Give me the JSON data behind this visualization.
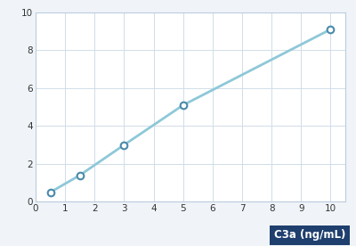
{
  "x": [
    0.5,
    1.5,
    3.0,
    5.0,
    10.0
  ],
  "y": [
    0.5,
    1.4,
    3.0,
    5.1,
    9.1
  ],
  "line_color": "#8ec8d8",
  "marker_edge_color": "#4a8aaa",
  "marker_face": "white",
  "xlim": [
    0,
    10.5
  ],
  "ylim": [
    0,
    10
  ],
  "xticks": [
    0,
    1,
    2,
    3,
    4,
    5,
    6,
    7,
    8,
    9,
    10
  ],
  "yticks": [
    0,
    2,
    4,
    6,
    8,
    10
  ],
  "xlabel": "C3a (ng/mL)",
  "xlabel_bg_color": "#1f3f6e",
  "xlabel_text_color": "#ffffff",
  "grid_color": "#d0dde8",
  "tick_fontsize": 7.5,
  "background_color": "#f0f4f8",
  "plot_bg_color": "#ffffff",
  "spine_color": "#bbccdd"
}
